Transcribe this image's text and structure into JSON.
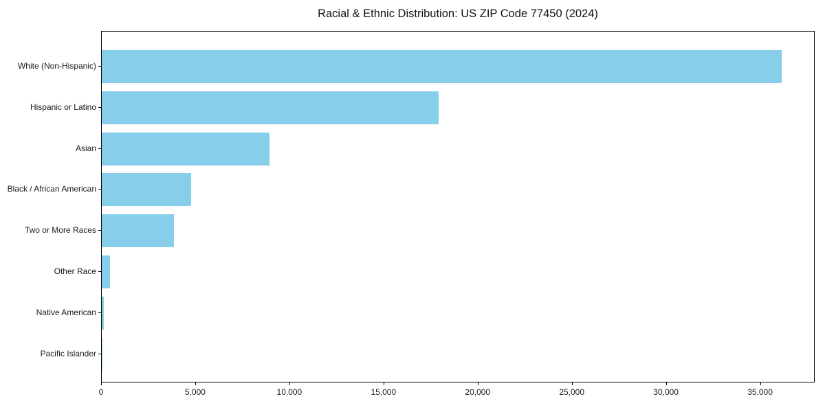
{
  "chart_data": {
    "type": "bar",
    "orientation": "horizontal",
    "title": "Racial & Ethnic Distribution: US ZIP Code 77450 (2024)",
    "categories": [
      "White (Non-Hispanic)",
      "Hispanic or Latino",
      "Asian",
      "Black / African American",
      "Two or More Races",
      "Other Race",
      "Native American",
      "Pacific Islander"
    ],
    "values": [
      36100,
      17900,
      8900,
      4750,
      3850,
      430,
      110,
      20
    ],
    "xlabel": "",
    "ylabel": "",
    "xlim": [
      0,
      37900
    ],
    "xticks": {
      "values": [
        0,
        5000,
        10000,
        15000,
        20000,
        25000,
        30000,
        35000
      ],
      "labels": [
        "0",
        "5,000",
        "10,000",
        "15,000",
        "20,000",
        "25,000",
        "30,000",
        "35,000"
      ]
    },
    "grid": false,
    "legend": null,
    "colors": {
      "bar": "#87CEEB",
      "axis": "#000000",
      "text": "#1a1a1a",
      "background": "#ffffff"
    }
  }
}
